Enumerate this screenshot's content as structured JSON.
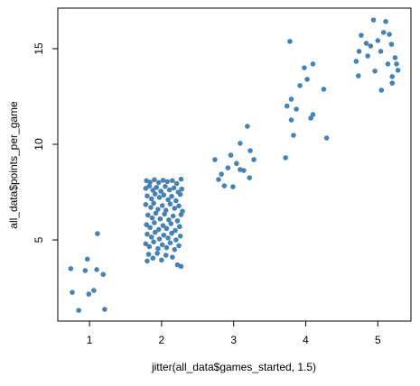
{
  "chart_data": {
    "type": "scatter",
    "x_label": "jitter(all_data$games_started, 1.5)",
    "y_label": "all_data$points_per_game",
    "color": "#4682b4",
    "xlim": [
      0.56,
      5.46
    ],
    "ylim": [
      0.76,
      17.12
    ],
    "xticks": [
      1,
      2,
      3,
      4,
      5
    ],
    "yticks": [
      5,
      10,
      15
    ],
    "x": [
      0.74,
      0.76,
      0.85,
      0.94,
      0.97,
      0.99,
      1.06,
      1.1,
      1.11,
      1.19,
      1.21,
      1.79,
      1.84,
      1.9,
      1.96,
      2.02,
      2.08,
      2.15,
      2.21,
      2.27,
      1.78,
      1.83,
      1.88,
      1.93,
      1.99,
      2.05,
      2.11,
      2.17,
      2.23,
      2.28,
      1.8,
      1.86,
      1.91,
      1.97,
      2.03,
      2.09,
      2.14,
      2.2,
      2.26,
      1.78,
      1.85,
      1.89,
      1.95,
      2.01,
      2.06,
      2.12,
      2.18,
      2.24,
      2.29,
      1.81,
      1.87,
      1.92,
      1.98,
      2.04,
      2.1,
      2.16,
      2.22,
      2.27,
      1.79,
      1.84,
      1.9,
      1.96,
      2.02,
      2.07,
      2.13,
      2.19,
      2.25,
      1.8,
      1.86,
      1.91,
      1.97,
      2.03,
      2.09,
      2.14,
      2.2,
      2.26,
      1.78,
      1.83,
      1.89,
      1.95,
      2.01,
      2.07,
      2.12,
      2.18,
      2.24,
      1.82,
      1.88,
      1.94,
      2.0,
      2.06,
      2.15,
      2.22,
      2.27,
      1.8,
      2.74,
      2.79,
      2.83,
      2.92,
      2.96,
      2.99,
      3.04,
      3.09,
      3.14,
      3.19,
      3.22,
      3.28,
      3.09,
      2.87,
      3.23,
      3.72,
      3.74,
      3.78,
      3.8,
      3.8,
      3.83,
      3.87,
      3.92,
      3.98,
      4.02,
      4.07,
      4.1,
      4.1,
      4.25,
      4.29,
      4.7,
      4.73,
      4.74,
      4.77,
      4.84,
      4.86,
      4.9,
      4.94,
      4.96,
      5.0,
      5.04,
      5.05,
      5.08,
      5.11,
      5.14,
      5.16,
      5.19,
      5.2,
      5.24,
      5.26,
      5.28,
      5.2
    ],
    "values": [
      3.5,
      2.26,
      1.32,
      3.4,
      4.0,
      2.17,
      2.36,
      3.45,
      5.33,
      3.2,
      1.37,
      8.1,
      8.02,
      8.15,
      8.0,
      8.12,
      8.05,
      8.1,
      7.95,
      8.18,
      7.7,
      7.82,
      7.6,
      7.75,
      7.55,
      7.8,
      7.62,
      7.72,
      7.5,
      7.66,
      7.3,
      7.15,
      7.4,
      7.22,
      7.35,
      7.1,
      7.28,
      7.05,
      7.38,
      6.85,
      6.7,
      6.92,
      6.6,
      6.8,
      6.55,
      6.88,
      6.65,
      6.78,
      6.5,
      6.3,
      6.15,
      6.4,
      6.1,
      6.35,
      6.05,
      6.25,
      6.0,
      6.32,
      5.8,
      5.65,
      5.9,
      5.55,
      5.75,
      5.6,
      5.85,
      5.5,
      5.7,
      5.3,
      5.15,
      5.4,
      5.05,
      5.25,
      5.1,
      5.35,
      5.0,
      5.2,
      4.8,
      4.65,
      4.9,
      4.55,
      4.75,
      4.6,
      4.85,
      4.5,
      4.7,
      4.25,
      4.05,
      4.3,
      3.95,
      4.2,
      4.1,
      3.7,
      3.62,
      3.9,
      9.2,
      8.16,
      8.44,
      8.77,
      9.43,
      7.78,
      9.0,
      10.05,
      8.63,
      10.94,
      8.25,
      9.2,
      8.68,
      7.83,
      9.67,
      9.3,
      12.0,
      15.38,
      12.36,
      11.27,
      10.47,
      11.84,
      13.07,
      14.0,
      13.4,
      11.37,
      14.2,
      11.56,
      12.88,
      10.33,
      14.34,
      13.58,
      14.86,
      15.7,
      15.28,
      14.62,
      15.14,
      16.5,
      13.83,
      15.42,
      14.86,
      12.83,
      15.85,
      16.42,
      14.2,
      15.75,
      15.23,
      13.2,
      14.53,
      14.2,
      13.87,
      13.54
    ]
  }
}
